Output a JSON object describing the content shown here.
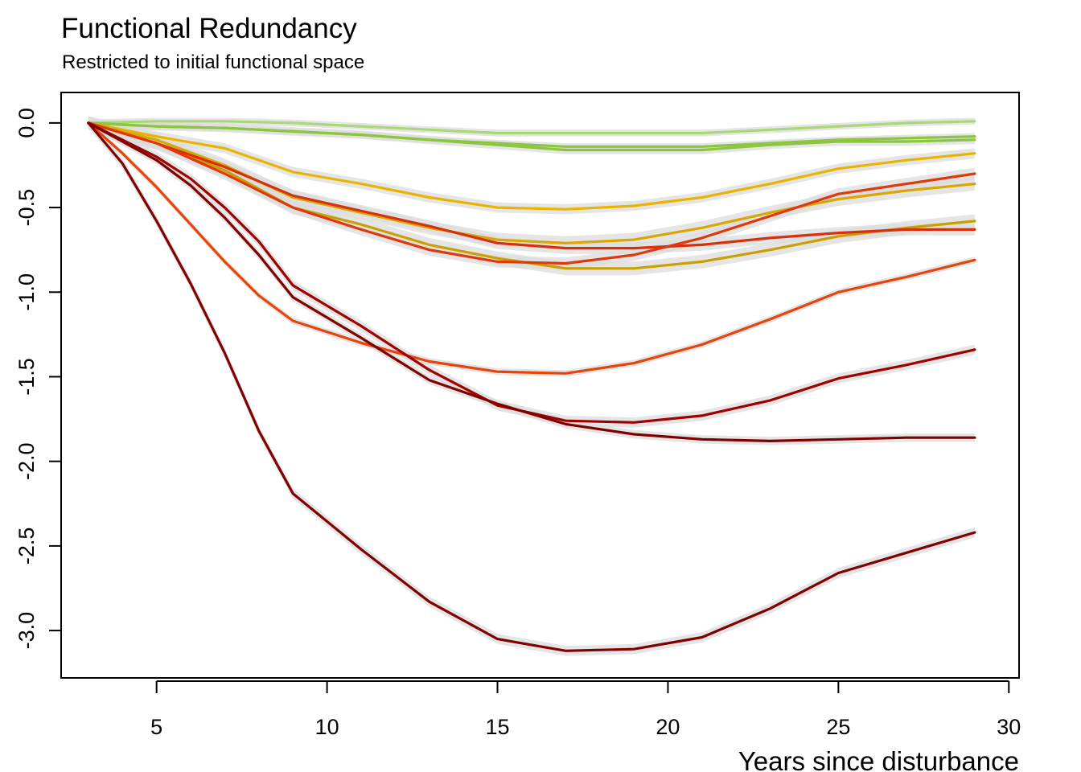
{
  "title": "Functional Redundancy",
  "subtitle": "Restricted to initial functional space",
  "chart_data": {
    "type": "line",
    "title": "Functional Redundancy",
    "subtitle": "Restricted to initial functional space",
    "xlabel": "Years since disturbance",
    "ylabel": "",
    "xlim": [
      2.2,
      30.3
    ],
    "ylim": [
      -3.28,
      0.18
    ],
    "xticks": [
      5,
      10,
      15,
      20,
      25,
      30
    ],
    "yticks": [
      0.0,
      -0.5,
      -1.0,
      -1.5,
      -2.0,
      -2.5,
      -3.0
    ],
    "xtick_labels": [
      "5",
      "10",
      "15",
      "20",
      "25",
      "30"
    ],
    "ytick_labels": [
      "0.0",
      "-0.5",
      "-1.0",
      "-1.5",
      "-2.0",
      "-2.5",
      "-3.0"
    ],
    "grid": false,
    "legend": "none",
    "colors": {
      "ribbon": "#dcdcdc",
      "green": "#8cc63f",
      "yellow": "#e8b400",
      "olive_yellow": "#c8a000",
      "orange_red": "#e8440a",
      "red": "#d8300c",
      "dark_red": "#8b0000"
    },
    "series": [
      {
        "color": "#a8d878",
        "band": 0.02,
        "x": [
          3,
          5,
          7,
          9,
          11,
          13,
          15,
          17,
          19,
          21,
          23,
          25,
          27,
          29
        ],
        "y": [
          0,
          0.01,
          0.01,
          0,
          -0.02,
          -0.04,
          -0.06,
          -0.06,
          -0.06,
          -0.06,
          -0.04,
          -0.02,
          0,
          0.01
        ]
      },
      {
        "color": "#8cc63f",
        "band": 0.02,
        "x": [
          3,
          5,
          7,
          9,
          11,
          13,
          15,
          17,
          19,
          21,
          23,
          25,
          27,
          29
        ],
        "y": [
          0,
          -0.02,
          -0.03,
          -0.05,
          -0.07,
          -0.1,
          -0.12,
          -0.14,
          -0.14,
          -0.14,
          -0.12,
          -0.1,
          -0.09,
          -0.08
        ]
      },
      {
        "color": "#8cc63f",
        "band": 0.025,
        "x": [
          3,
          5,
          7,
          9,
          11,
          13,
          15,
          17,
          19,
          21,
          23,
          25,
          27,
          29
        ],
        "y": [
          0,
          -0.02,
          -0.03,
          -0.05,
          -0.07,
          -0.1,
          -0.13,
          -0.16,
          -0.16,
          -0.16,
          -0.13,
          -0.11,
          -0.11,
          -0.1
        ]
      },
      {
        "color": "#e8b400",
        "band": 0.03,
        "x": [
          3,
          5,
          7,
          9,
          11,
          13,
          15,
          17,
          19,
          21,
          23,
          25,
          27,
          29
        ],
        "y": [
          0,
          -0.08,
          -0.15,
          -0.29,
          -0.36,
          -0.44,
          -0.5,
          -0.51,
          -0.49,
          -0.44,
          -0.36,
          -0.27,
          -0.22,
          -0.18
        ]
      },
      {
        "color": "#d8a800",
        "band": 0.04,
        "x": [
          3,
          5,
          7,
          9,
          11,
          13,
          15,
          17,
          19,
          21,
          23,
          25,
          27,
          29
        ],
        "y": [
          0,
          -0.1,
          -0.25,
          -0.44,
          -0.53,
          -0.62,
          -0.69,
          -0.71,
          -0.69,
          -0.62,
          -0.53,
          -0.45,
          -0.4,
          -0.36
        ]
      },
      {
        "color": "#c8a000",
        "band": 0.04,
        "x": [
          3,
          5,
          7,
          9,
          11,
          13,
          15,
          17,
          19,
          21,
          23,
          25,
          27,
          29
        ],
        "y": [
          0,
          -0.12,
          -0.28,
          -0.5,
          -0.6,
          -0.72,
          -0.8,
          -0.86,
          -0.86,
          -0.82,
          -0.75,
          -0.67,
          -0.62,
          -0.58
        ]
      },
      {
        "color": "#d8300c",
        "band": 0.035,
        "x": [
          3,
          5,
          7,
          9,
          11,
          13,
          15,
          17,
          19,
          21,
          23,
          25,
          27,
          29
        ],
        "y": [
          0,
          -0.12,
          -0.26,
          -0.43,
          -0.52,
          -0.61,
          -0.71,
          -0.74,
          -0.74,
          -0.72,
          -0.68,
          -0.65,
          -0.63,
          -0.63
        ]
      },
      {
        "color": "#e0380a",
        "band": 0.035,
        "x": [
          3,
          5,
          7,
          9,
          11,
          13,
          15,
          17,
          19,
          21,
          23,
          25,
          27,
          29
        ],
        "y": [
          0,
          -0.12,
          -0.3,
          -0.5,
          -0.63,
          -0.75,
          -0.82,
          -0.83,
          -0.78,
          -0.68,
          -0.55,
          -0.42,
          -0.36,
          -0.3
        ]
      },
      {
        "color": "#e8440a",
        "band": 0.02,
        "x": [
          3,
          4,
          5,
          6,
          7,
          8,
          9,
          11,
          13,
          15,
          17,
          19,
          21,
          23,
          25,
          27,
          29
        ],
        "y": [
          0,
          -0.18,
          -0.38,
          -0.6,
          -0.82,
          -1.02,
          -1.17,
          -1.3,
          -1.41,
          -1.47,
          -1.48,
          -1.42,
          -1.31,
          -1.16,
          -1.0,
          -0.91,
          -0.81
        ]
      },
      {
        "color": "#a00000",
        "band": 0.03,
        "x": [
          3,
          5,
          6,
          7,
          8,
          9,
          11,
          13,
          15,
          17,
          19,
          21,
          23,
          25,
          27,
          29
        ],
        "y": [
          0,
          -0.2,
          -0.33,
          -0.5,
          -0.7,
          -0.96,
          -1.2,
          -1.46,
          -1.67,
          -1.76,
          -1.77,
          -1.73,
          -1.64,
          -1.51,
          -1.43,
          -1.34
        ]
      },
      {
        "color": "#800000",
        "band": 0.025,
        "x": [
          3,
          5,
          6,
          7,
          8,
          9,
          11,
          13,
          15,
          17,
          19,
          21,
          23,
          25,
          27,
          29
        ],
        "y": [
          0,
          -0.22,
          -0.37,
          -0.56,
          -0.78,
          -1.03,
          -1.27,
          -1.52,
          -1.66,
          -1.78,
          -1.84,
          -1.87,
          -1.88,
          -1.87,
          -1.86,
          -1.86
        ]
      },
      {
        "color": "#800000",
        "band": 0.03,
        "x": [
          3,
          4,
          5,
          6,
          7,
          8,
          9,
          11,
          13,
          15,
          17,
          19,
          21,
          23,
          25,
          27,
          29
        ],
        "y": [
          0,
          -0.24,
          -0.58,
          -0.95,
          -1.36,
          -1.82,
          -2.19,
          -2.52,
          -2.83,
          -3.05,
          -3.12,
          -3.11,
          -3.04,
          -2.87,
          -2.66,
          -2.54,
          -2.42
        ]
      }
    ]
  }
}
